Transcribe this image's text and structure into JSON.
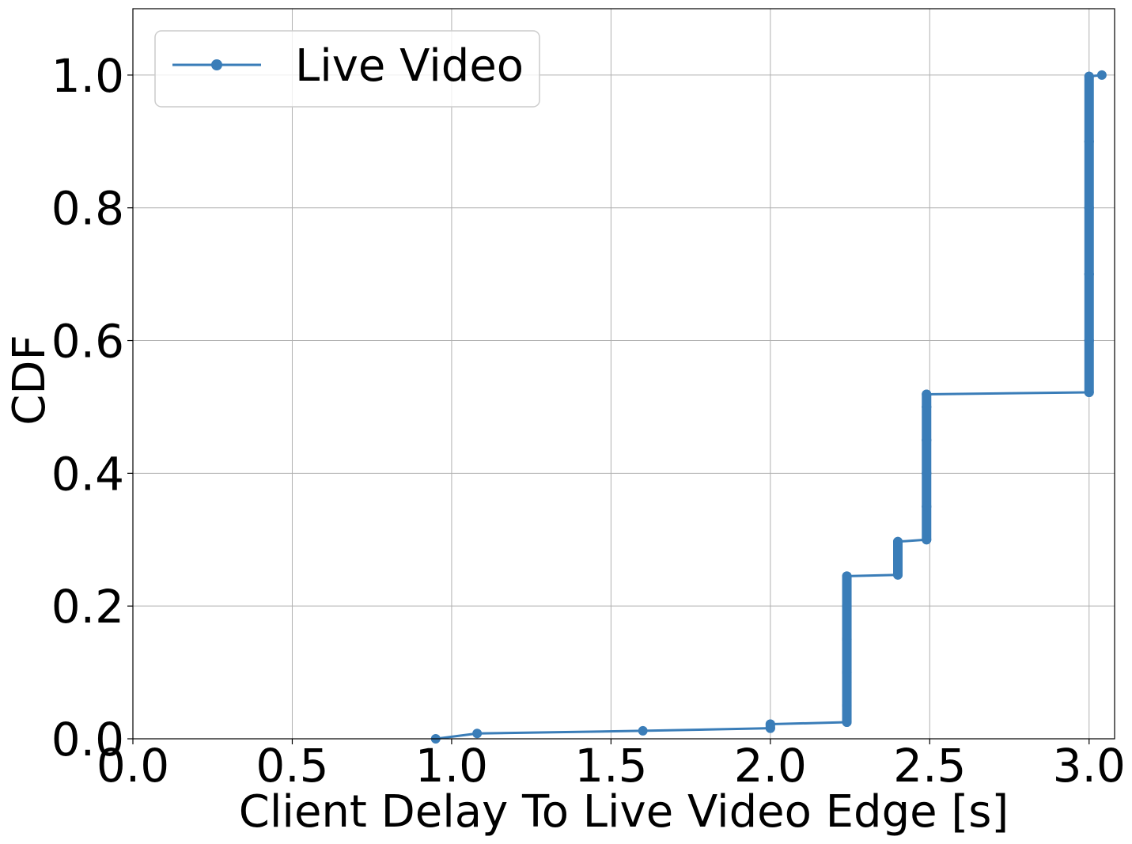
{
  "chart_data": {
    "type": "line",
    "xlabel": "Client Delay To Live Video Edge [s]",
    "ylabel": "CDF",
    "xlim": [
      0.0,
      3.08
    ],
    "ylim": [
      0.0,
      1.1
    ],
    "xticks": [
      "0.0",
      "0.5",
      "1.0",
      "1.5",
      "2.0",
      "2.5",
      "3.0"
    ],
    "yticks": [
      "0.0",
      "0.2",
      "0.4",
      "0.6",
      "0.8",
      "1.0"
    ],
    "grid": true,
    "legend_position": "top-left",
    "series": [
      {
        "name": "Live Video",
        "color": "#3a7db8",
        "marker": "circle",
        "points": [
          [
            0.95,
            0.0
          ],
          [
            1.08,
            0.008
          ],
          [
            1.6,
            0.012
          ],
          [
            2.0,
            0.016
          ],
          [
            2.0,
            0.022
          ],
          [
            2.24,
            0.025
          ],
          [
            2.24,
            0.05
          ],
          [
            2.24,
            0.1
          ],
          [
            2.24,
            0.15
          ],
          [
            2.24,
            0.2
          ],
          [
            2.24,
            0.245
          ],
          [
            2.4,
            0.247
          ],
          [
            2.4,
            0.27
          ],
          [
            2.4,
            0.297
          ],
          [
            2.49,
            0.3
          ],
          [
            2.49,
            0.35
          ],
          [
            2.49,
            0.4
          ],
          [
            2.49,
            0.45
          ],
          [
            2.49,
            0.5
          ],
          [
            2.49,
            0.519
          ],
          [
            3.0,
            0.522
          ],
          [
            3.0,
            0.6
          ],
          [
            3.0,
            0.7
          ],
          [
            3.0,
            0.8
          ],
          [
            3.0,
            0.9
          ],
          [
            3.0,
            0.998
          ],
          [
            3.04,
            1.0
          ]
        ]
      }
    ]
  }
}
